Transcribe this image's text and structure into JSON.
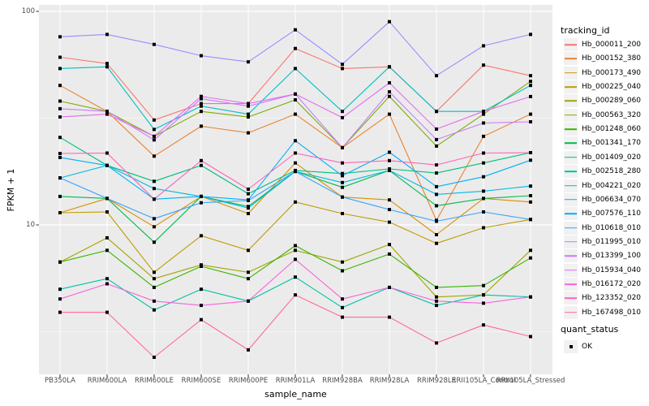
{
  "chart_data": {
    "type": "line",
    "title": "",
    "xlabel": "sample_name",
    "ylabel": "FPKM + 1",
    "y_scale": "log10",
    "ylim": [
      2,
      105
    ],
    "grid": true,
    "legend_position": "right",
    "legend_title": "tracking_id",
    "quant_legend_title": "quant_status",
    "panel_background": "#EBEBEB",
    "gridline_color": "#FFFFFF",
    "axis_text_color": "#4D4D4D",
    "y_ticks": [
      {
        "value": 100,
        "label": "100"
      },
      {
        "value": 10,
        "label": "10"
      }
    ],
    "y_minor_gridlines": [
      3.162,
      31.623
    ],
    "point_marker": {
      "shape": "square",
      "color": "#000000",
      "legend_label": "OK"
    },
    "categories": [
      "PB350LA",
      "RRIM600LA",
      "RRIM600LE",
      "RRIM600SE",
      "RRIM600PE",
      "RRIM901LA",
      "RRIM928BA",
      "RRIM928LA",
      "RRIM928LE",
      "RRII105LA_Control",
      "RRII105LA_Stressed"
    ],
    "series": [
      {
        "name": "Hb_000011_200",
        "color": "#F8766D",
        "values": [
          61,
          57,
          31,
          37,
          37,
          67,
          54,
          55,
          34,
          56,
          50
        ]
      },
      {
        "name": "Hb_000152_380",
        "color": "#EA8331",
        "values": [
          45,
          34,
          21,
          29,
          27,
          33,
          23,
          33,
          10.5,
          26,
          33
        ]
      },
      {
        "name": "Hb_000173_490",
        "color": "#D89000",
        "values": [
          11.4,
          13.3,
          9.8,
          13.6,
          11.3,
          19.5,
          13.5,
          13.1,
          9,
          13.3,
          12.8
        ]
      },
      {
        "name": "Hb_000225_040",
        "color": "#C09B00",
        "values": [
          11.4,
          11.5,
          6,
          8.9,
          7.6,
          12.8,
          11.3,
          10.3,
          8.2,
          9.7,
          10.6
        ]
      },
      {
        "name": "Hb_000289_060",
        "color": "#A3A500",
        "values": [
          6.7,
          8.7,
          5.6,
          6.5,
          6,
          7.6,
          6.7,
          8.1,
          4.6,
          4.7,
          7.6
        ]
      },
      {
        "name": "Hb_000563_320",
        "color": "#7CAE00",
        "values": [
          38,
          34,
          26,
          34,
          32,
          38.5,
          23,
          40,
          23.4,
          33,
          47
        ]
      },
      {
        "name": "Hb_001248_060",
        "color": "#39B600",
        "values": [
          6.7,
          7.6,
          5.1,
          6.4,
          5.6,
          8,
          6.1,
          7.3,
          5.1,
          5.2,
          7
        ]
      },
      {
        "name": "Hb_001341_170",
        "color": "#00BB4E",
        "values": [
          13.6,
          13.3,
          8.3,
          13.6,
          12.2,
          17.8,
          15,
          18,
          12.3,
          13.3,
          13.7
        ]
      },
      {
        "name": "Hb_001409_020",
        "color": "#00BF7D",
        "values": [
          25.7,
          19,
          16,
          19,
          14,
          18,
          17.4,
          18.3,
          17.5,
          19.5,
          21.8
        ]
      },
      {
        "name": "Hb_002518_280",
        "color": "#00C1A3",
        "values": [
          5,
          5.6,
          4,
          5,
          4.4,
          5.7,
          4.1,
          5.1,
          4.2,
          4.7,
          4.6
        ]
      },
      {
        "name": "Hb_004221_020",
        "color": "#00BFC4",
        "values": [
          54,
          55,
          28,
          36,
          33,
          54,
          34,
          55,
          34,
          34,
          45
        ]
      },
      {
        "name": "Hb_006634_070",
        "color": "#00BAE0",
        "values": [
          16.6,
          19,
          14.8,
          13.6,
          12,
          17.8,
          15.8,
          18,
          13.9,
          14.4,
          15.2
        ]
      },
      {
        "name": "Hb_007576_110",
        "color": "#00B0F6",
        "values": [
          20.7,
          19,
          13.2,
          13.6,
          13.1,
          24.8,
          17,
          21.9,
          15.1,
          16.8,
          20.1
        ]
      },
      {
        "name": "Hb_010618_010",
        "color": "#35A2FF",
        "values": [
          16.6,
          13.3,
          10.7,
          12.7,
          13,
          17.8,
          13.5,
          11.8,
          10.4,
          11.5,
          10.6
        ]
      },
      {
        "name": "Hb_011995_010",
        "color": "#9590FF",
        "values": [
          76,
          78,
          70,
          62,
          58,
          82,
          56.5,
          89.5,
          50,
          69,
          78
        ]
      },
      {
        "name": "Hb_013399_100",
        "color": "#C77CFF",
        "values": [
          35,
          34,
          25,
          39,
          36,
          41,
          23,
          42,
          25.1,
          30,
          30.4
        ]
      },
      {
        "name": "Hb_015934_040",
        "color": "#E76BF3",
        "values": [
          32,
          33,
          26,
          40,
          37,
          41,
          31.8,
          46.3,
          28.1,
          34,
          39.9
        ]
      },
      {
        "name": "Hb_016172_020",
        "color": "#FA62DB",
        "values": [
          4.5,
          5.3,
          4.4,
          4.2,
          4.4,
          6.9,
          4.5,
          5.1,
          4.4,
          4.3,
          4.6
        ]
      },
      {
        "name": "Hb_123352_020",
        "color": "#FF62BC",
        "values": [
          21.6,
          21.7,
          13.2,
          20,
          14.7,
          21.7,
          19.5,
          20,
          19.1,
          21.7,
          21.8
        ]
      },
      {
        "name": "Hb_167498_010",
        "color": "#FF6A98",
        "values": [
          3.9,
          3.9,
          2.4,
          3.6,
          2.6,
          4.7,
          3.7,
          3.7,
          2.8,
          3.4,
          3
        ]
      }
    ]
  }
}
